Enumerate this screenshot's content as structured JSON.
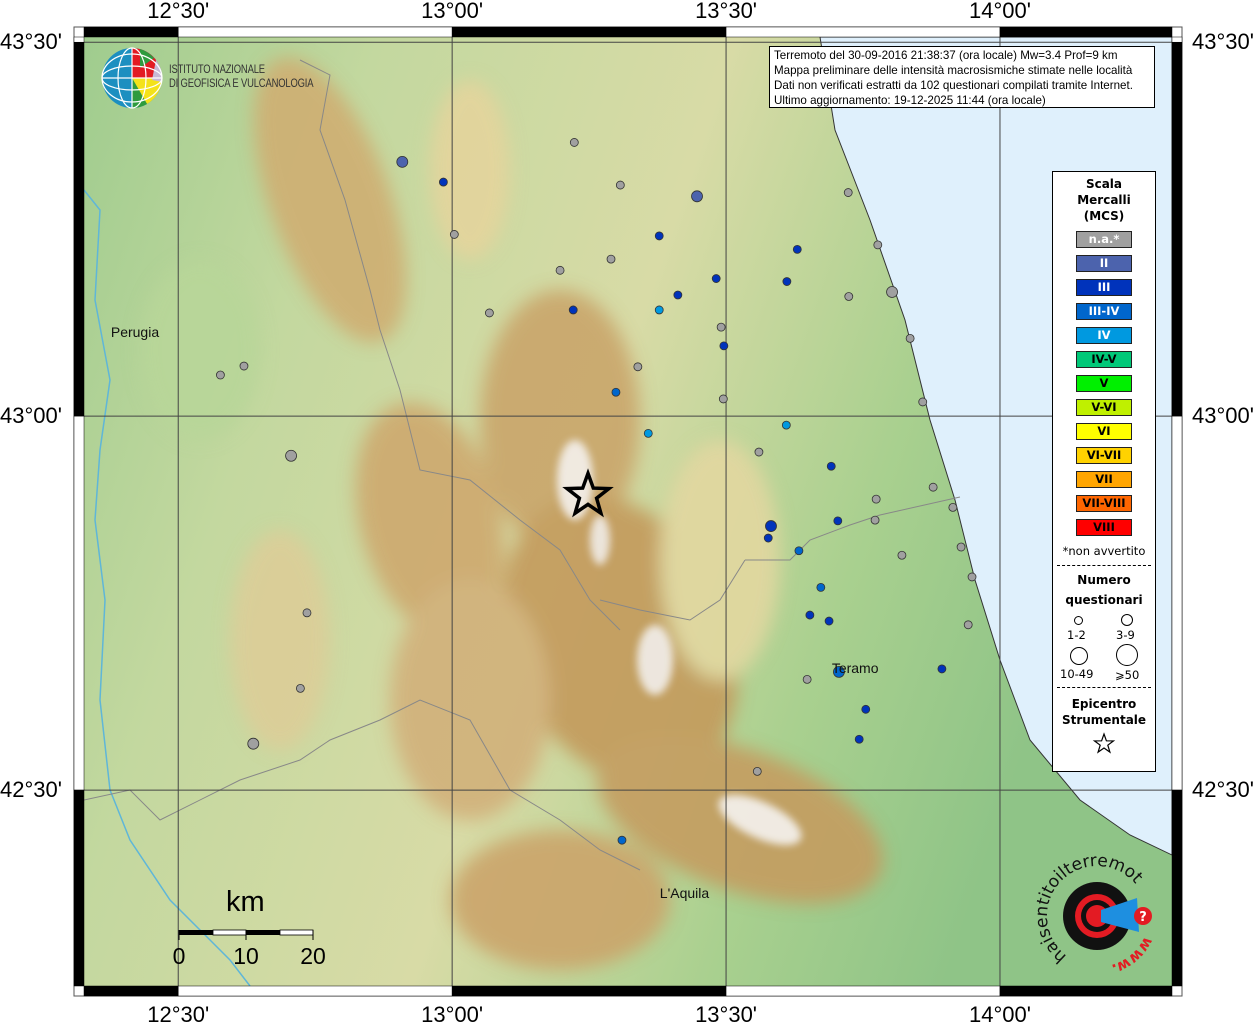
{
  "map": {
    "extent": {
      "lon": [
        12.328,
        14.314
      ],
      "lat": [
        42.238,
        43.507
      ]
    },
    "lon_ticks": [
      {
        "value": 12.5,
        "label": "12°30'"
      },
      {
        "value": 13.0,
        "label": "13°00'"
      },
      {
        "value": 13.5,
        "label": "13°30'"
      },
      {
        "value": 14.0,
        "label": "14°00'"
      }
    ],
    "lat_ticks": [
      {
        "value": 43.5,
        "label": "43°30'"
      },
      {
        "value": 43.0,
        "label": "43°00'"
      },
      {
        "value": 42.5,
        "label": "42°30'"
      }
    ],
    "cities": [
      {
        "name": "Perugia",
        "lon": 12.388,
        "lat": 43.11
      },
      {
        "name": "Teramo",
        "lon": 13.704,
        "lat": 42.66
      },
      {
        "name": "L'Aquila",
        "lon": 13.39,
        "lat": 42.36
      }
    ],
    "epicenter": {
      "lon": 13.248,
      "lat": 42.894
    },
    "scale_bar": {
      "unit": "km",
      "labels": [
        "0",
        "10",
        "20"
      ]
    },
    "points": [
      [
        13.223,
        43.366,
        "na",
        1
      ],
      [
        12.909,
        43.34,
        "II",
        2
      ],
      [
        12.984,
        43.313,
        "III",
        1
      ],
      [
        13.307,
        43.309,
        "na",
        1
      ],
      [
        13.447,
        43.294,
        "II",
        2
      ],
      [
        13.723,
        43.299,
        "na",
        1
      ],
      [
        13.004,
        43.243,
        "na",
        1
      ],
      [
        13.378,
        43.241,
        "III",
        1
      ],
      [
        13.63,
        43.223,
        "III",
        1
      ],
      [
        13.777,
        43.229,
        "na",
        1
      ],
      [
        13.29,
        43.21,
        "na",
        1
      ],
      [
        13.197,
        43.195,
        "na",
        1
      ],
      [
        13.482,
        43.184,
        "III",
        1
      ],
      [
        13.611,
        43.18,
        "III",
        1
      ],
      [
        13.803,
        43.166,
        "na",
        2
      ],
      [
        13.724,
        43.16,
        "na",
        1
      ],
      [
        13.412,
        43.162,
        "III",
        1
      ],
      [
        13.221,
        43.142,
        "III",
        1
      ],
      [
        13.378,
        43.142,
        "IV",
        1
      ],
      [
        13.068,
        43.138,
        "na",
        1
      ],
      [
        13.491,
        43.119,
        "na",
        1
      ],
      [
        13.496,
        43.094,
        "III",
        1
      ],
      [
        13.836,
        43.104,
        "na",
        1
      ],
      [
        12.62,
        43.067,
        "na",
        1
      ],
      [
        12.577,
        43.055,
        "na",
        1
      ],
      [
        13.339,
        43.066,
        "na",
        1
      ],
      [
        13.299,
        43.032,
        "III-IV",
        1
      ],
      [
        13.495,
        43.023,
        "na",
        1
      ],
      [
        13.859,
        43.019,
        "na",
        1
      ],
      [
        13.61,
        42.988,
        "IV",
        1
      ],
      [
        13.358,
        42.977,
        "IV",
        1
      ],
      [
        12.706,
        42.947,
        "na",
        2
      ],
      [
        13.56,
        42.952,
        "na",
        1
      ],
      [
        13.692,
        42.933,
        "III",
        1
      ],
      [
        13.878,
        42.905,
        "na",
        1
      ],
      [
        13.774,
        42.889,
        "na",
        1
      ],
      [
        13.914,
        42.878,
        "na",
        1
      ],
      [
        13.772,
        42.861,
        "na",
        1
      ],
      [
        13.704,
        42.86,
        "III",
        1
      ],
      [
        13.582,
        42.853,
        "III",
        2
      ],
      [
        13.577,
        42.837,
        "III",
        1
      ],
      [
        13.633,
        42.82,
        "III-IV",
        1
      ],
      [
        13.929,
        42.825,
        "na",
        1
      ],
      [
        13.821,
        42.814,
        "na",
        1
      ],
      [
        13.949,
        42.785,
        "na",
        1
      ],
      [
        13.673,
        42.771,
        "III-IV",
        1
      ],
      [
        12.735,
        42.737,
        "na",
        1
      ],
      [
        13.653,
        42.734,
        "III",
        1
      ],
      [
        13.688,
        42.726,
        "III",
        1
      ],
      [
        13.942,
        42.721,
        "na",
        1
      ],
      [
        13.706,
        42.658,
        "III-IV",
        2
      ],
      [
        13.894,
        42.662,
        "III",
        1
      ],
      [
        13.648,
        42.648,
        "na",
        1
      ],
      [
        12.723,
        42.636,
        "na",
        1
      ],
      [
        13.755,
        42.608,
        "III",
        1
      ],
      [
        12.637,
        42.562,
        "na",
        2
      ],
      [
        13.743,
        42.568,
        "III",
        1
      ],
      [
        13.557,
        42.525,
        "na",
        1
      ],
      [
        13.31,
        42.433,
        "III-IV",
        1
      ]
    ]
  },
  "info": {
    "lines": [
      "Terremoto del 30-09-2016 21:38:37 (ora locale) Mw=3.4 Prof=9 km",
      "Mappa preliminare delle intensità macrosismiche stimate nelle località",
      "Dati non verificati estratti da 102 questionari compilati tramite Internet.",
      "Ultimo aggiornamento: 19-12-2025 11:44 (ora locale)"
    ]
  },
  "legend": {
    "title": [
      "Scala",
      "Mercalli",
      "(MCS)"
    ],
    "classes": [
      {
        "key": "na",
        "label": "n.a.*",
        "color": "#a0a0a0",
        "text": "#ffffff"
      },
      {
        "key": "II",
        "label": "II",
        "color": "#4c63ad",
        "text": "#ffffff"
      },
      {
        "key": "III",
        "label": "III",
        "color": "#0033bb",
        "text": "#ffffff"
      },
      {
        "key": "III-IV",
        "label": "III-IV",
        "color": "#0066cc",
        "text": "#ffffff"
      },
      {
        "key": "IV",
        "label": "IV",
        "color": "#0099e0",
        "text": "#ffffff"
      },
      {
        "key": "IV-V",
        "label": "IV-V",
        "color": "#00c878",
        "text": "#000000"
      },
      {
        "key": "V",
        "label": "V",
        "color": "#00f000",
        "text": "#000000"
      },
      {
        "key": "V-VI",
        "label": "V-VI",
        "color": "#bff000",
        "text": "#000000"
      },
      {
        "key": "VI",
        "label": "VI",
        "color": "#ffff00",
        "text": "#000000"
      },
      {
        "key": "VI-VII",
        "label": "VI-VII",
        "color": "#ffd200",
        "text": "#000000"
      },
      {
        "key": "VII",
        "label": "VII",
        "color": "#ffa500",
        "text": "#000000"
      },
      {
        "key": "VII-VIII",
        "label": "VII-VIII",
        "color": "#ff6600",
        "text": "#000000"
      },
      {
        "key": "VIII",
        "label": "VIII",
        "color": "#ff0000",
        "text": "#000000"
      }
    ],
    "note": "*non avvertito",
    "count_title": [
      "Numero",
      "questionari"
    ],
    "count_classes": [
      "1-2",
      "3-9",
      "10-49",
      "⩾50"
    ],
    "epicenter_title": [
      "Epicentro",
      "Strumentale"
    ]
  },
  "logos": {
    "ingv": [
      "ISTITUTO NAZIONALE",
      "DI GEOFISICA E VULCANOLOGIA"
    ],
    "hsit": {
      "arc_text": "haisentitoilterremoto.it",
      "www": "www."
    }
  },
  "colors": {
    "sea": "#dff0fc",
    "grid": "#444444"
  }
}
